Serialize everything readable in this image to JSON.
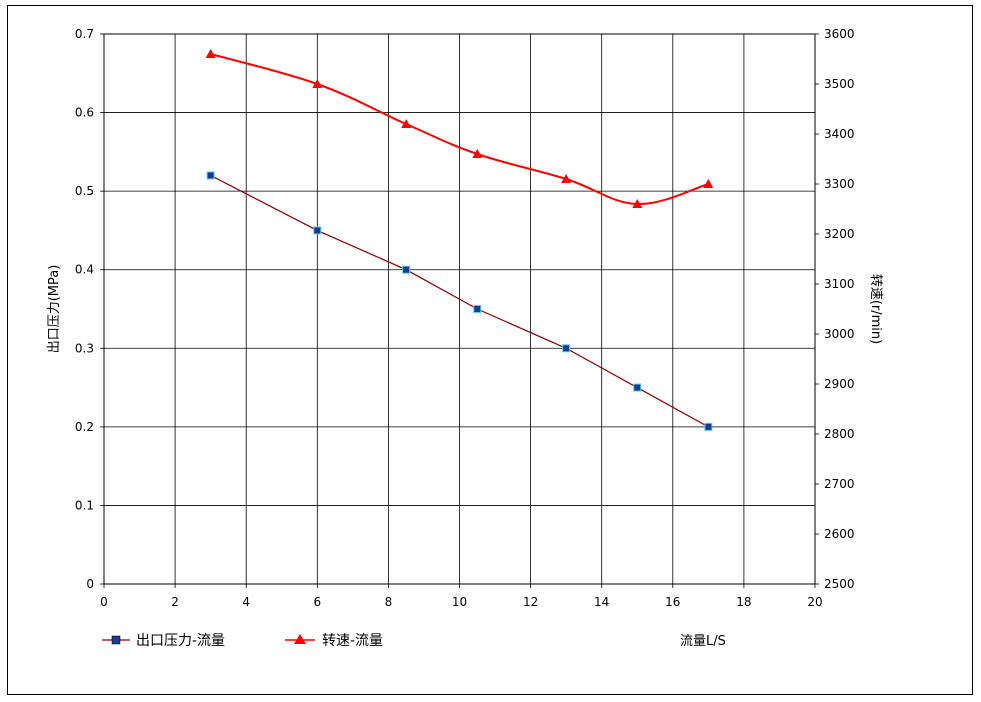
{
  "chart_data": {
    "type": "line",
    "title": "",
    "xlabel": "流量L/S",
    "ylabel_left": "出口压力(MPa)",
    "ylabel_right": "转速(r/min)",
    "xlim": [
      0,
      20
    ],
    "ylim_left": [
      0,
      0.7
    ],
    "ylim_right": [
      2500,
      3600
    ],
    "x_ticks": [
      "0",
      "2",
      "4",
      "6",
      "8",
      "10",
      "12",
      "14",
      "16",
      "18",
      "20"
    ],
    "y_left_ticks": [
      "0",
      "0.1",
      "0.2",
      "0.3",
      "0.4",
      "0.5",
      "0.6",
      "0.7"
    ],
    "y_right_ticks": [
      "2500",
      "2600",
      "2700",
      "2800",
      "2900",
      "3000",
      "3100",
      "3200",
      "3300",
      "3400",
      "3500",
      "3600"
    ],
    "grid": true,
    "legend_position": "bottom-left",
    "series": [
      {
        "name": "出口压力-流量",
        "axis": "left",
        "color": "#8B0000",
        "marker": "square",
        "marker_color": "#1a3a8f",
        "x": [
          3,
          6,
          8.5,
          10.5,
          13,
          15,
          17
        ],
        "y": [
          0.52,
          0.45,
          0.4,
          0.35,
          0.3,
          0.25,
          0.2
        ]
      },
      {
        "name": "转速-流量",
        "axis": "right",
        "color": "#ff0000",
        "marker": "triangle",
        "marker_color": "#ff0000",
        "x": [
          3,
          6,
          8.5,
          10.5,
          13,
          15,
          17
        ],
        "y": [
          3560,
          3500,
          3420,
          3360,
          3310,
          3260,
          3300
        ]
      }
    ]
  }
}
